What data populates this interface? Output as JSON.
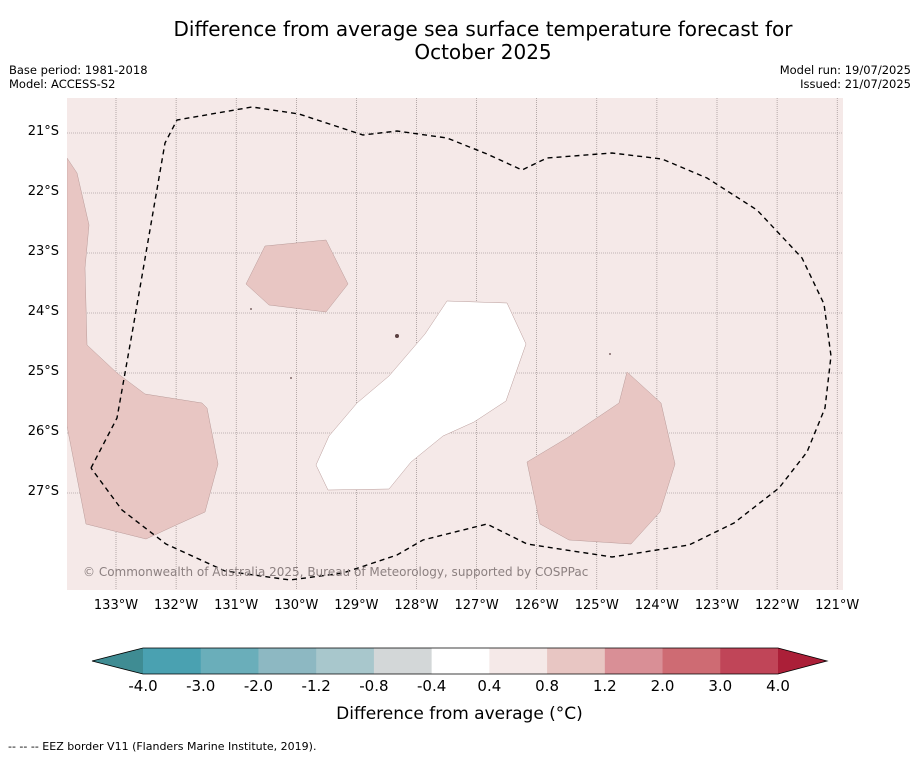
{
  "title_line1": "Difference from average sea surface temperature forecast for",
  "title_line2": "October 2025",
  "base_period": "Base period: 1981-2018",
  "model": "Model: ACCESS-S2",
  "model_run": "Model run: 19/07/2025",
  "issued": "Issued: 21/07/2025",
  "copyright": "© Commonwealth of Australia 2025, Bureau of Meteorology, supported by COSPPac",
  "latitudes": [
    "21°S",
    "22°S",
    "23°S",
    "24°S",
    "25°S",
    "26°S",
    "27°S"
  ],
  "longitudes": [
    "133°W",
    "132°W",
    "131°W",
    "130°W",
    "129°W",
    "128°W",
    "127°W",
    "126°W",
    "125°W",
    "124°W",
    "123°W",
    "122°W",
    "121°W"
  ],
  "colorbar": {
    "label": "Difference from average ($^\\circ$C)",
    "label_display": "Difference from average (°C)",
    "ticks": [
      "-4.0",
      "-3.0",
      "-2.0",
      "-1.2",
      "-0.8",
      "-0.4",
      "0.4",
      "0.8",
      "1.2",
      "2.0",
      "3.0",
      "4.0"
    ],
    "colors": [
      "#4aa1b1",
      "#6aaeba",
      "#8db8c2",
      "#a8c7cc",
      "#d3d7d8",
      "#ffffff",
      "#f5e9e8",
      "#e8c6c3",
      "#d98f96",
      "#ce6b73",
      "#c04558"
    ],
    "under_color": "#3f8c93",
    "over_color": "#ab1f38"
  },
  "eez_note": "--  --  -- EEZ border V11 (Flanders Marine Institute, 2019).",
  "map_colors": {
    "background": "#f5e9e8",
    "warm_patch": "#e8c6c3",
    "neutral_patch": "#ffffff",
    "eez_line": "#000000"
  }
}
